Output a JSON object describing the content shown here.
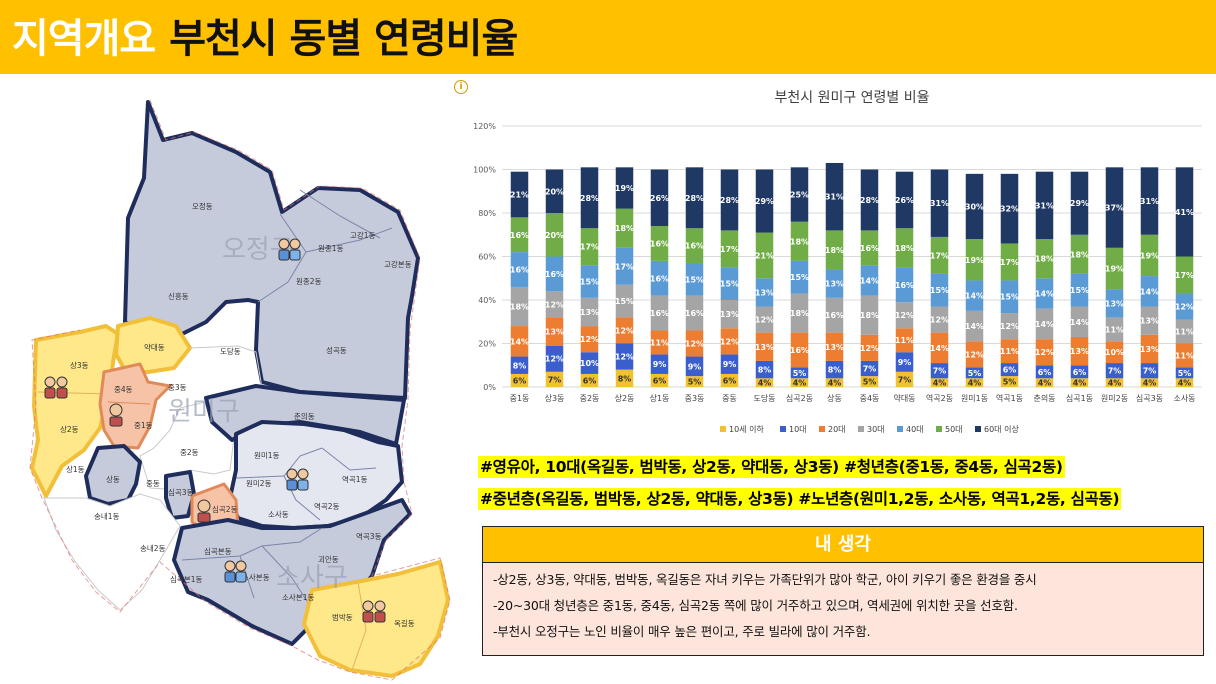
{
  "header": {
    "prefix": "지역개요",
    "title": "부천시 동별 연령비율"
  },
  "map": {
    "district_labels": [
      "오정구",
      "원미구",
      "소사구"
    ],
    "dong_labels": [
      "오정동",
      "원종1동",
      "원종2동",
      "고강1동",
      "고강본동",
      "신흥동",
      "성곡동",
      "상3동",
      "약대동",
      "도당동",
      "중4동",
      "중3동",
      "중1동",
      "상2동",
      "춘의동",
      "원미1동",
      "원미2동",
      "역곡1동",
      "역곡2동",
      "중2동",
      "상1동",
      "상동",
      "중동",
      "심곡3동",
      "심곡2동",
      "소사동",
      "송내1동",
      "송내2동",
      "심곡본동",
      "심곡본1동",
      "소사본동",
      "괴안동",
      "역곡3동",
      "소사본1동",
      "범박동",
      "옥길동"
    ]
  },
  "chart_data": {
    "type": "bar",
    "stacked": true,
    "title": "부천시 원미구 연령별 비율",
    "categories": [
      "중1동",
      "상3동",
      "중2동",
      "상2동",
      "상1동",
      "중3동",
      "중동",
      "도당동",
      "심곡2동",
      "상동",
      "중4동",
      "약대동",
      "역곡2동",
      "원미1동",
      "역곡1동",
      "춘의동",
      "심곡1동",
      "원미2동",
      "심곡3동",
      "소사동"
    ],
    "ylim": [
      0,
      120
    ],
    "yticks": [
      "0%",
      "20%",
      "40%",
      "60%",
      "80%",
      "100%",
      "120%"
    ],
    "grid": true,
    "legend_position": "bottom",
    "series": [
      {
        "name": "10세 이하",
        "color": "#f2c12e",
        "values": [
          6,
          7,
          6,
          8,
          6,
          5,
          6,
          4,
          4,
          4,
          5,
          7,
          4,
          4,
          5,
          4,
          4,
          4,
          4,
          4
        ]
      },
      {
        "name": "10대",
        "color": "#3a5fcd",
        "values": [
          8,
          12,
          10,
          12,
          9,
          9,
          9,
          8,
          5,
          8,
          7,
          9,
          7,
          5,
          6,
          6,
          6,
          7,
          7,
          5
        ]
      },
      {
        "name": "20대",
        "color": "#ed7d31",
        "values": [
          14,
          13,
          12,
          12,
          11,
          12,
          12,
          13,
          16,
          13,
          12,
          11,
          14,
          12,
          11,
          12,
          13,
          10,
          13,
          11
        ]
      },
      {
        "name": "30대",
        "color": "#a5a5a5",
        "values": [
          18,
          12,
          13,
          15,
          16,
          16,
          13,
          12,
          18,
          16,
          18,
          12,
          12,
          14,
          12,
          14,
          14,
          11,
          13,
          11
        ]
      },
      {
        "name": "40대",
        "color": "#5b9bd5",
        "values": [
          16,
          16,
          15,
          17,
          16,
          15,
          15,
          13,
          15,
          13,
          14,
          16,
          15,
          14,
          15,
          14,
          15,
          13,
          14,
          12
        ]
      },
      {
        "name": "50대",
        "color": "#70ad47",
        "values": [
          16,
          20,
          17,
          18,
          16,
          16,
          17,
          21,
          18,
          18,
          16,
          18,
          17,
          19,
          17,
          18,
          18,
          19,
          19,
          17
        ]
      },
      {
        "name": "60대 이상",
        "color": "#1f3864",
        "values": [
          21,
          20,
          28,
          19,
          26,
          28,
          28,
          29,
          25,
          31,
          28,
          26,
          31,
          30,
          32,
          31,
          29,
          37,
          31,
          41
        ]
      }
    ],
    "data_labels": [
      [
        "6%",
        "8%",
        "14%",
        "18%",
        "16%",
        "16%",
        "21%"
      ],
      [
        "7%",
        "12%",
        "13%",
        "12%",
        "16%",
        "20%",
        "20%"
      ],
      [
        "6%",
        "10%",
        "12%",
        "13%",
        "15%",
        "17%",
        "28%"
      ],
      [
        "8%",
        "12%",
        "12%",
        "15%",
        "17%",
        "18%",
        "19%"
      ],
      [
        "6%",
        "9%",
        "11%",
        "16%",
        "16%",
        "16%",
        "26%"
      ],
      [
        "5%",
        "9%",
        "12%",
        "16%",
        "15%",
        "16%",
        "28%"
      ],
      [
        "6%",
        "9%",
        "12%",
        "13%",
        "15%",
        "17%",
        "28%"
      ],
      [
        "4%",
        "8%",
        "13%",
        "12%",
        "13%",
        "21%",
        "29%"
      ],
      [
        "4%",
        "5%",
        "16%",
        "18%",
        "15%",
        "18%",
        "25%"
      ],
      [
        "4%",
        "8%",
        "13%",
        "16%",
        "13%",
        "18%",
        "31%"
      ],
      [
        "5%",
        "7%",
        "12%",
        "18%",
        "14%",
        "16%",
        "28%"
      ],
      [
        "7%",
        "9%",
        "11%",
        "12%",
        "16%",
        "18%",
        "26%"
      ],
      [
        "4%",
        "7%",
        "14%",
        "12%",
        "15%",
        "17%",
        "31%"
      ],
      [
        "4%",
        "5%",
        "12%",
        "14%",
        "14%",
        "19%",
        "30%"
      ],
      [
        "5%",
        "6%",
        "11%",
        "12%",
        "15%",
        "17%",
        "32%"
      ],
      [
        "4%",
        "6%",
        "12%",
        "14%",
        "14%",
        "18%",
        "31%"
      ],
      [
        "4%",
        "6%",
        "13%",
        "14%",
        "15%",
        "18%",
        "29%"
      ],
      [
        "4%",
        "7%",
        "10%",
        "11%",
        "13%",
        "19%",
        "37%"
      ],
      [
        "4%",
        "7%",
        "13%",
        "13%",
        "14%",
        "19%",
        "31%"
      ],
      [
        "4%",
        "5%",
        "11%",
        "11%",
        "12%",
        "17%",
        "41%"
      ]
    ]
  },
  "tags": {
    "line1": "#영유아, 10대(옥길동, 범박동, 상2동, 약대동, 상3동) #청년층(중1동, 중4동, 심곡2동)",
    "line2": "#중년층(옥길동, 범박동, 상2동, 약대동, 상3동) #노년층(원미1,2동, 소사동, 역곡1,2동, 심곡동)"
  },
  "note": {
    "heading": "내 생각",
    "lines": [
      "-상2동, 상3동, 약대동, 범박동, 옥길동은 자녀 키우는 가족단위가 많아 학군, 아이 키우기 좋은 환경을 중시",
      "-20~30대 청년층은 중1동, 중4동, 심곡2동 쪽에 많이 거주하고 있으며, 역세권에 위치한 곳을 선호함.",
      "-부천시 오정구는 노인 비율이 매우 높은 편이고, 주로 빌라에 많이 거주함."
    ]
  },
  "colors": {
    "accent": "#ffc000",
    "map_dark": "#1f2d5c",
    "map_fill": "#c6cbdc",
    "map_yellow": "#ffe88a",
    "map_orange": "#f4b183"
  }
}
